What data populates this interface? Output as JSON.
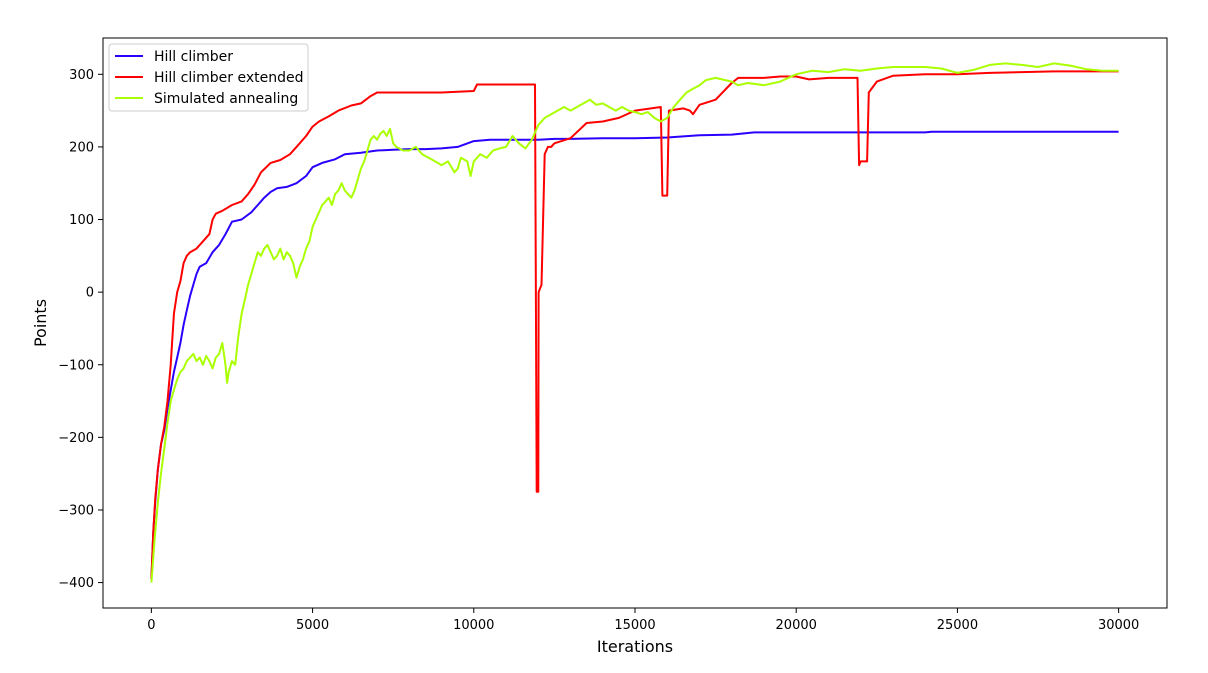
{
  "chart_data": {
    "type": "line",
    "title": "",
    "xlabel": "Iterations",
    "ylabel": "Points",
    "xlim": [
      -1500,
      31500
    ],
    "ylim": [
      -435,
      350
    ],
    "xticks": [
      0,
      5000,
      10000,
      15000,
      20000,
      25000,
      30000
    ],
    "yticks": [
      -400,
      -300,
      -200,
      -100,
      0,
      100,
      200,
      300
    ],
    "grid": false,
    "legend_position": "upper left",
    "series": [
      {
        "name": "Hill climber",
        "color": "#2a00ff",
        "points": [
          [
            0,
            -395
          ],
          [
            60,
            -330
          ],
          [
            120,
            -290
          ],
          [
            200,
            -245
          ],
          [
            300,
            -210
          ],
          [
            400,
            -190
          ],
          [
            500,
            -160
          ],
          [
            600,
            -135
          ],
          [
            700,
            -110
          ],
          [
            800,
            -90
          ],
          [
            900,
            -70
          ],
          [
            1000,
            -45
          ],
          [
            1100,
            -25
          ],
          [
            1200,
            -5
          ],
          [
            1300,
            10
          ],
          [
            1400,
            25
          ],
          [
            1500,
            35
          ],
          [
            1700,
            40
          ],
          [
            1900,
            55
          ],
          [
            2100,
            65
          ],
          [
            2300,
            80
          ],
          [
            2500,
            97
          ],
          [
            2800,
            100
          ],
          [
            3100,
            110
          ],
          [
            3300,
            120
          ],
          [
            3500,
            130
          ],
          [
            3700,
            138
          ],
          [
            3900,
            143
          ],
          [
            4200,
            145
          ],
          [
            4500,
            150
          ],
          [
            4800,
            160
          ],
          [
            5000,
            172
          ],
          [
            5300,
            178
          ],
          [
            5700,
            183
          ],
          [
            6000,
            190
          ],
          [
            6500,
            192
          ],
          [
            7000,
            195
          ],
          [
            7500,
            196
          ],
          [
            8000,
            197
          ],
          [
            8500,
            197
          ],
          [
            9000,
            198
          ],
          [
            9500,
            200
          ],
          [
            10000,
            208
          ],
          [
            10500,
            210
          ],
          [
            11000,
            210
          ],
          [
            12000,
            210
          ],
          [
            12500,
            211
          ],
          [
            13000,
            211
          ],
          [
            14000,
            212
          ],
          [
            15000,
            212
          ],
          [
            16000,
            213
          ],
          [
            17000,
            216
          ],
          [
            18000,
            217
          ],
          [
            18700,
            220
          ],
          [
            20000,
            220
          ],
          [
            22000,
            220
          ],
          [
            24000,
            220
          ],
          [
            24200,
            221
          ],
          [
            26000,
            221
          ],
          [
            28000,
            221
          ],
          [
            30000,
            221
          ]
        ]
      },
      {
        "name": "Hill climber extended",
        "color": "#ff0000",
        "points": [
          [
            0,
            -395
          ],
          [
            60,
            -330
          ],
          [
            120,
            -285
          ],
          [
            200,
            -245
          ],
          [
            300,
            -210
          ],
          [
            400,
            -185
          ],
          [
            500,
            -150
          ],
          [
            600,
            -100
          ],
          [
            700,
            -30
          ],
          [
            800,
            0
          ],
          [
            900,
            15
          ],
          [
            1000,
            40
          ],
          [
            1100,
            50
          ],
          [
            1200,
            55
          ],
          [
            1400,
            60
          ],
          [
            1600,
            70
          ],
          [
            1800,
            80
          ],
          [
            1900,
            100
          ],
          [
            2000,
            108
          ],
          [
            2200,
            112
          ],
          [
            2500,
            120
          ],
          [
            2800,
            125
          ],
          [
            3000,
            135
          ],
          [
            3200,
            148
          ],
          [
            3400,
            165
          ],
          [
            3700,
            178
          ],
          [
            4000,
            182
          ],
          [
            4300,
            190
          ],
          [
            4500,
            200
          ],
          [
            4800,
            215
          ],
          [
            5000,
            228
          ],
          [
            5200,
            235
          ],
          [
            5500,
            242
          ],
          [
            5800,
            250
          ],
          [
            6200,
            257
          ],
          [
            6500,
            260
          ],
          [
            6800,
            270
          ],
          [
            7000,
            275
          ],
          [
            8000,
            275
          ],
          [
            9000,
            275
          ],
          [
            9500,
            276
          ],
          [
            10000,
            277
          ],
          [
            10100,
            286
          ],
          [
            11000,
            286
          ],
          [
            11900,
            286
          ],
          [
            11950,
            -275
          ],
          [
            12000,
            -275
          ],
          [
            12010,
            0
          ],
          [
            12100,
            10
          ],
          [
            12200,
            190
          ],
          [
            12300,
            200
          ],
          [
            12400,
            200
          ],
          [
            12500,
            205
          ],
          [
            13000,
            212
          ],
          [
            13500,
            233
          ],
          [
            14000,
            235
          ],
          [
            14500,
            240
          ],
          [
            15000,
            250
          ],
          [
            15500,
            253
          ],
          [
            15800,
            255
          ],
          [
            15850,
            133
          ],
          [
            16000,
            133
          ],
          [
            16050,
            250
          ],
          [
            16500,
            253
          ],
          [
            16700,
            250
          ],
          [
            16800,
            245
          ],
          [
            17000,
            258
          ],
          [
            17500,
            265
          ],
          [
            18000,
            288
          ],
          [
            18200,
            295
          ],
          [
            19000,
            295
          ],
          [
            19500,
            297
          ],
          [
            20000,
            297
          ],
          [
            20400,
            293
          ],
          [
            21000,
            295
          ],
          [
            21900,
            295
          ],
          [
            21950,
            175
          ],
          [
            22000,
            180
          ],
          [
            22200,
            180
          ],
          [
            22250,
            275
          ],
          [
            22500,
            290
          ],
          [
            23000,
            298
          ],
          [
            24000,
            300
          ],
          [
            25000,
            300
          ],
          [
            26000,
            302
          ],
          [
            27000,
            303
          ],
          [
            28000,
            304
          ],
          [
            29000,
            304
          ],
          [
            30000,
            304
          ]
        ]
      },
      {
        "name": "Simulated annealing",
        "color": "#aaff00",
        "points": [
          [
            0,
            -400
          ],
          [
            100,
            -340
          ],
          [
            200,
            -290
          ],
          [
            300,
            -250
          ],
          [
            400,
            -215
          ],
          [
            500,
            -180
          ],
          [
            600,
            -150
          ],
          [
            700,
            -135
          ],
          [
            800,
            -120
          ],
          [
            900,
            -110
          ],
          [
            1000,
            -105
          ],
          [
            1100,
            -95
          ],
          [
            1200,
            -90
          ],
          [
            1300,
            -85
          ],
          [
            1400,
            -95
          ],
          [
            1500,
            -90
          ],
          [
            1600,
            -100
          ],
          [
            1700,
            -88
          ],
          [
            1800,
            -95
          ],
          [
            1900,
            -105
          ],
          [
            2000,
            -90
          ],
          [
            2100,
            -85
          ],
          [
            2200,
            -70
          ],
          [
            2300,
            -100
          ],
          [
            2350,
            -125
          ],
          [
            2400,
            -110
          ],
          [
            2500,
            -95
          ],
          [
            2600,
            -100
          ],
          [
            2700,
            -60
          ],
          [
            2800,
            -30
          ],
          [
            2900,
            -10
          ],
          [
            3000,
            10
          ],
          [
            3100,
            25
          ],
          [
            3200,
            40
          ],
          [
            3300,
            55
          ],
          [
            3400,
            50
          ],
          [
            3500,
            60
          ],
          [
            3600,
            65
          ],
          [
            3700,
            55
          ],
          [
            3800,
            45
          ],
          [
            3900,
            50
          ],
          [
            4000,
            60
          ],
          [
            4100,
            45
          ],
          [
            4200,
            55
          ],
          [
            4300,
            50
          ],
          [
            4400,
            40
          ],
          [
            4500,
            20
          ],
          [
            4600,
            35
          ],
          [
            4700,
            45
          ],
          [
            4800,
            60
          ],
          [
            4900,
            70
          ],
          [
            5000,
            90
          ],
          [
            5100,
            100
          ],
          [
            5200,
            110
          ],
          [
            5300,
            120
          ],
          [
            5400,
            125
          ],
          [
            5500,
            130
          ],
          [
            5600,
            120
          ],
          [
            5700,
            135
          ],
          [
            5800,
            140
          ],
          [
            5900,
            150
          ],
          [
            6000,
            140
          ],
          [
            6100,
            135
          ],
          [
            6200,
            130
          ],
          [
            6300,
            140
          ],
          [
            6400,
            155
          ],
          [
            6500,
            170
          ],
          [
            6600,
            180
          ],
          [
            6700,
            195
          ],
          [
            6800,
            210
          ],
          [
            6900,
            215
          ],
          [
            7000,
            210
          ],
          [
            7100,
            218
          ],
          [
            7200,
            222
          ],
          [
            7300,
            215
          ],
          [
            7400,
            225
          ],
          [
            7500,
            205
          ],
          [
            7600,
            200
          ],
          [
            7800,
            195
          ],
          [
            8000,
            195
          ],
          [
            8200,
            200
          ],
          [
            8400,
            190
          ],
          [
            8600,
            185
          ],
          [
            8800,
            180
          ],
          [
            9000,
            175
          ],
          [
            9200,
            180
          ],
          [
            9400,
            165
          ],
          [
            9500,
            170
          ],
          [
            9600,
            185
          ],
          [
            9800,
            180
          ],
          [
            9900,
            160
          ],
          [
            10000,
            180
          ],
          [
            10200,
            190
          ],
          [
            10400,
            185
          ],
          [
            10600,
            195
          ],
          [
            10800,
            198
          ],
          [
            11000,
            200
          ],
          [
            11200,
            215
          ],
          [
            11400,
            205
          ],
          [
            11600,
            198
          ],
          [
            11800,
            210
          ],
          [
            12000,
            230
          ],
          [
            12200,
            240
          ],
          [
            12400,
            245
          ],
          [
            12600,
            250
          ],
          [
            12800,
            255
          ],
          [
            13000,
            250
          ],
          [
            13200,
            255
          ],
          [
            13400,
            260
          ],
          [
            13600,
            265
          ],
          [
            13800,
            258
          ],
          [
            14000,
            260
          ],
          [
            14200,
            255
          ],
          [
            14400,
            250
          ],
          [
            14600,
            255
          ],
          [
            14800,
            250
          ],
          [
            15000,
            248
          ],
          [
            15200,
            245
          ],
          [
            15400,
            248
          ],
          [
            15600,
            240
          ],
          [
            15800,
            235
          ],
          [
            16000,
            240
          ],
          [
            16200,
            255
          ],
          [
            16400,
            265
          ],
          [
            16600,
            275
          ],
          [
            16800,
            280
          ],
          [
            17000,
            285
          ],
          [
            17200,
            292
          ],
          [
            17500,
            295
          ],
          [
            18000,
            290
          ],
          [
            18200,
            285
          ],
          [
            18500,
            288
          ],
          [
            19000,
            285
          ],
          [
            19500,
            290
          ],
          [
            20000,
            300
          ],
          [
            20500,
            305
          ],
          [
            21000,
            303
          ],
          [
            21500,
            307
          ],
          [
            22000,
            305
          ],
          [
            22500,
            308
          ],
          [
            23000,
            310
          ],
          [
            23500,
            310
          ],
          [
            24000,
            310
          ],
          [
            24500,
            308
          ],
          [
            25000,
            302
          ],
          [
            25500,
            306
          ],
          [
            26000,
            313
          ],
          [
            26500,
            315
          ],
          [
            27000,
            313
          ],
          [
            27500,
            310
          ],
          [
            28000,
            315
          ],
          [
            28500,
            312
          ],
          [
            29000,
            307
          ],
          [
            29500,
            305
          ],
          [
            30000,
            305
          ]
        ]
      }
    ]
  }
}
